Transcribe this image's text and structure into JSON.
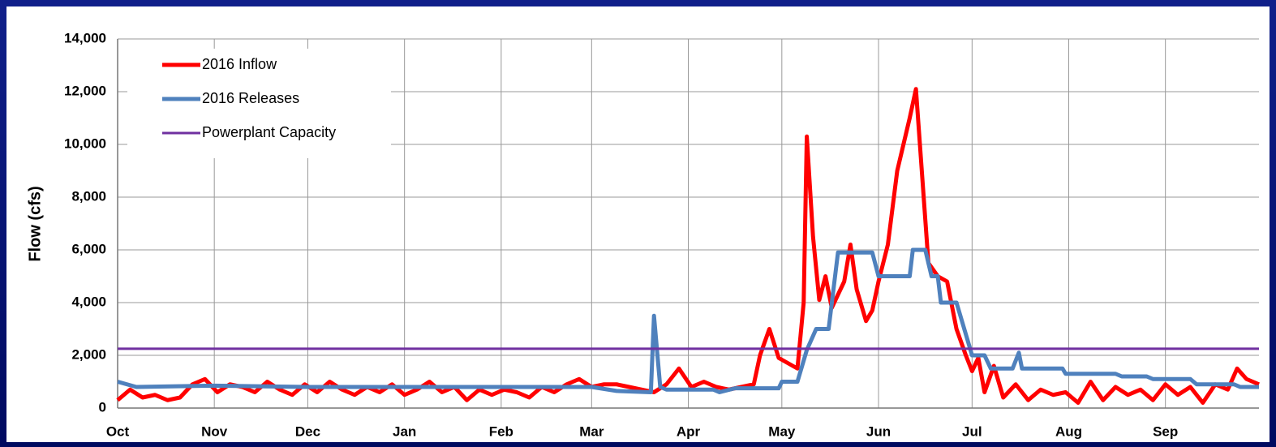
{
  "chart_data": {
    "type": "line",
    "ylabel": "Flow (cfs)",
    "xlim": [
      0,
      366
    ],
    "xticks": [
      {
        "value": 0,
        "label": "Oct"
      },
      {
        "value": 31,
        "label": "Nov"
      },
      {
        "value": 61,
        "label": "Dec"
      },
      {
        "value": 92,
        "label": "Jan"
      },
      {
        "value": 123,
        "label": "Feb"
      },
      {
        "value": 152,
        "label": "Mar"
      },
      {
        "value": 183,
        "label": "Apr"
      },
      {
        "value": 213,
        "label": "May"
      },
      {
        "value": 244,
        "label": "Jun"
      },
      {
        "value": 274,
        "label": "Jul"
      },
      {
        "value": 305,
        "label": "Aug"
      },
      {
        "value": 336,
        "label": "Sep"
      }
    ],
    "ylim": [
      0,
      14000
    ],
    "yticks": [
      0,
      {
        "value": 2000,
        "label": "2,000"
      },
      {
        "value": 4000,
        "label": "4,000"
      },
      {
        "value": 6000,
        "label": "6,000"
      },
      {
        "value": 8000,
        "label": "8,000"
      },
      {
        "value": 10000,
        "label": "10,000"
      },
      {
        "value": 12000,
        "label": "12,000"
      },
      {
        "value": 14000,
        "label": "14,000"
      }
    ],
    "grid": true,
    "legend": "upper left",
    "series": [
      {
        "name": "2016 Inflow",
        "color": "#ff0000",
        "width": 5,
        "x": [
          0,
          4,
          8,
          12,
          16,
          20,
          24,
          28,
          32,
          36,
          40,
          44,
          48,
          52,
          56,
          60,
          64,
          68,
          72,
          76,
          80,
          84,
          88,
          92,
          96,
          100,
          104,
          108,
          112,
          116,
          120,
          124,
          128,
          132,
          136,
          140,
          144,
          148,
          152,
          156,
          160,
          164,
          168,
          172,
          176,
          180,
          184,
          188,
          192,
          196,
          200,
          204,
          206,
          209,
          212,
          215,
          218,
          220,
          221,
          223,
          225,
          227,
          229,
          233,
          235,
          237,
          240,
          242,
          244,
          247,
          250,
          252,
          254,
          256,
          258,
          260,
          263,
          266,
          269,
          272,
          274,
          276,
          278,
          281,
          284,
          288,
          292,
          296,
          300,
          304,
          308,
          312,
          316,
          320,
          324,
          328,
          332,
          336,
          340,
          344,
          348,
          352,
          356,
          359,
          362,
          366
        ],
        "values": [
          300,
          700,
          400,
          500,
          300,
          400,
          900,
          1100,
          600,
          900,
          800,
          600,
          1000,
          700,
          500,
          900,
          600,
          1000,
          700,
          500,
          800,
          600,
          900,
          500,
          700,
          1000,
          600,
          800,
          300,
          700,
          500,
          700,
          600,
          400,
          800,
          600,
          900,
          1100,
          800,
          900,
          900,
          800,
          700,
          600,
          900,
          1500,
          800,
          1000,
          800,
          700,
          800,
          900,
          2000,
          3000,
          1900,
          1700,
          1500,
          4000,
          10300,
          6500,
          4100,
          5000,
          3800,
          4800,
          6200,
          4500,
          3300,
          3700,
          4800,
          6200,
          9000,
          10000,
          11000,
          12100,
          8800,
          5500,
          5000,
          4800,
          3000,
          2000,
          1400,
          1900,
          600,
          1600,
          400,
          900,
          300,
          700,
          500,
          600,
          200,
          1000,
          300,
          800,
          500,
          700,
          300,
          900,
          500,
          800,
          200,
          900,
          700,
          1500,
          1100,
          900
        ]
      },
      {
        "name": "2016 Releases",
        "color": "#4f81bd",
        "width": 5,
        "x": [
          0,
          6,
          31,
          61,
          92,
          123,
          152,
          160,
          171,
          172,
          174,
          176,
          191,
          193,
          198,
          212,
          213,
          218,
          221,
          224,
          228,
          231,
          242,
          244,
          254,
          255,
          259,
          261,
          263,
          264,
          269,
          274,
          278,
          280,
          287,
          289,
          290,
          303,
          304,
          320,
          322,
          330,
          332,
          344,
          346,
          358,
          360,
          366
        ],
        "values": [
          1000,
          800,
          850,
          800,
          800,
          800,
          800,
          650,
          600,
          3500,
          800,
          700,
          700,
          600,
          750,
          750,
          1000,
          1000,
          2200,
          3000,
          3000,
          5900,
          5900,
          5000,
          5000,
          6000,
          6000,
          5000,
          5000,
          4000,
          4000,
          2000,
          2000,
          1500,
          1500,
          2100,
          1500,
          1500,
          1300,
          1300,
          1200,
          1200,
          1100,
          1100,
          900,
          900,
          800,
          800
        ]
      },
      {
        "name": "Powerplant Capacity",
        "color": "#7030a0",
        "width": 3,
        "x": [
          0,
          366
        ],
        "values": [
          2250,
          2250
        ]
      }
    ]
  }
}
